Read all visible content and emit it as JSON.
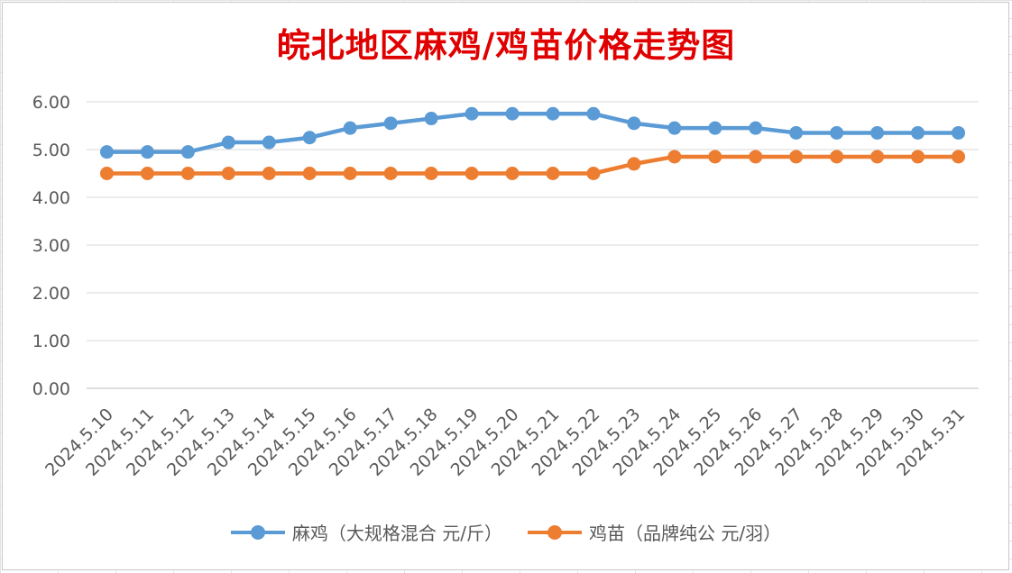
{
  "chart_data": {
    "type": "line",
    "title": "皖北地区麻鸡/鸡苗价格走势图",
    "categories": [
      "2024.5.10",
      "2024.5.11",
      "2024.5.12",
      "2024.5.13",
      "2024.5.14",
      "2024.5.15",
      "2024.5.16",
      "2024.5.17",
      "2024.5.18",
      "2024.5.19",
      "2024.5.20",
      "2024.5.21",
      "2024.5.22",
      "2024.5.23",
      "2024.5.24",
      "2024.5.25",
      "2024.5.26",
      "2024.5.27",
      "2024.5.28",
      "2024.5.29",
      "2024.5.30",
      "2024.5.31"
    ],
    "series": [
      {
        "name": "麻鸡（大规格混合 元/斤）",
        "color": "#5b9bd5",
        "values": [
          4.95,
          4.95,
          4.95,
          5.15,
          5.15,
          5.25,
          5.45,
          5.55,
          5.65,
          5.75,
          5.75,
          5.75,
          5.75,
          5.55,
          5.45,
          5.45,
          5.45,
          5.35,
          5.35,
          5.35,
          5.35,
          5.35
        ]
      },
      {
        "name": "鸡苗（品牌纯公 元/羽）",
        "color": "#ed7d31",
        "values": [
          4.5,
          4.5,
          4.5,
          4.5,
          4.5,
          4.5,
          4.5,
          4.5,
          4.5,
          4.5,
          4.5,
          4.5,
          4.5,
          4.7,
          4.85,
          4.85,
          4.85,
          4.85,
          4.85,
          4.85,
          4.85,
          4.85
        ]
      }
    ],
    "y_ticks": [
      "0.00",
      "1.00",
      "2.00",
      "3.00",
      "4.00",
      "5.00",
      "6.00"
    ],
    "ylim": [
      0,
      6
    ],
    "grid": true,
    "legend_position": "bottom"
  },
  "colors": {
    "title": "#e00000",
    "grid": "#d9d9d9",
    "tick_label": "#595959"
  }
}
